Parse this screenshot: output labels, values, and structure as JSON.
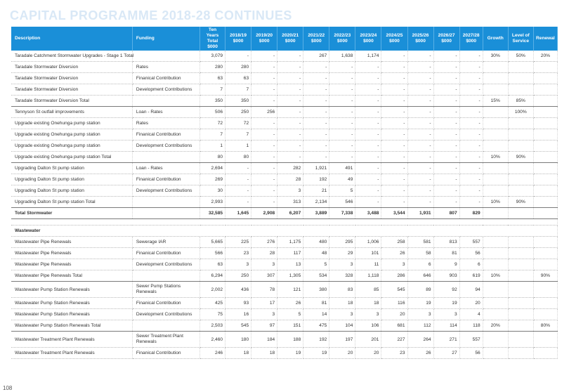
{
  "page": {
    "heading": "CAPITAL PROGRAMME 2018-28 CONTINUES",
    "number": "108"
  },
  "columns": {
    "description": "Description",
    "funding": "Funding",
    "total": "Ten Years Total $000",
    "years": [
      "2018/19 $000",
      "2019/20 $000",
      "2020/21 $000",
      "2021/22 $000",
      "2022/23 $000",
      "2023/24 $000",
      "2024/25 $000",
      "2025/26 $000",
      "2026/27 $000",
      "2027/28 $000"
    ],
    "growth": "Growth",
    "los": "Level of Service",
    "renewal": "Renewal"
  },
  "rows": [
    {
      "k": "item",
      "desc": "Taradale Catchment Stormwater Upgrades - Stage 1 Total",
      "fund": "",
      "total": "3,079",
      "y": [
        "-",
        "-",
        "-",
        "267",
        "1,638",
        "1,174",
        "-",
        "-",
        "-",
        "-"
      ],
      "g": "30%",
      "l": "50%",
      "r": "20%"
    },
    {
      "k": "item",
      "desc": "Taradale Stormwater Diversion",
      "fund": "Rates",
      "total": "280",
      "y": [
        "280",
        "-",
        "-",
        "-",
        "-",
        "-",
        "-",
        "-",
        "-",
        "-"
      ],
      "g": "",
      "l": "",
      "r": ""
    },
    {
      "k": "item",
      "desc": "Taradale Stormwater Diversion",
      "fund": "Finanical Contribution",
      "total": "63",
      "y": [
        "63",
        "-",
        "-",
        "-",
        "-",
        "-",
        "-",
        "-",
        "-",
        "-"
      ],
      "g": "",
      "l": "",
      "r": ""
    },
    {
      "k": "item",
      "desc": "Taradale Stormwater Diversion",
      "fund": "Development Contributions",
      "total": "7",
      "y": [
        "7",
        "-",
        "-",
        "-",
        "-",
        "-",
        "-",
        "-",
        "-",
        "-"
      ],
      "g": "",
      "l": "",
      "r": ""
    },
    {
      "k": "total",
      "desc": "Taradale Stormwater Diversion Total",
      "fund": "",
      "total": "350",
      "y": [
        "350",
        "-",
        "-",
        "-",
        "-",
        "-",
        "-",
        "-",
        "-",
        "-"
      ],
      "g": "15%",
      "l": "85%",
      "r": ""
    },
    {
      "k": "item",
      "desc": "Tennyson St outfall improvements",
      "fund": "Loan - Rates",
      "total": "506",
      "y": [
        "250",
        "256",
        "-",
        "-",
        "-",
        "-",
        "-",
        "-",
        "-",
        "-"
      ],
      "g": "",
      "l": "100%",
      "r": ""
    },
    {
      "k": "item",
      "desc": "Upgrade existing Onehunga pump station",
      "fund": "Rates",
      "total": "72",
      "y": [
        "72",
        "-",
        "-",
        "-",
        "-",
        "-",
        "-",
        "-",
        "-",
        "-"
      ],
      "g": "",
      "l": "",
      "r": ""
    },
    {
      "k": "item",
      "desc": "Upgrade existing Onehunga pump station",
      "fund": "Finanical Contribution",
      "total": "7",
      "y": [
        "7",
        "-",
        "-",
        "-",
        "-",
        "-",
        "-",
        "-",
        "-",
        "-"
      ],
      "g": "",
      "l": "",
      "r": ""
    },
    {
      "k": "item",
      "desc": "Upgrade existing Onehunga pump station",
      "fund": "Development Contributions",
      "total": "1",
      "y": [
        "1",
        "-",
        "-",
        "-",
        "-",
        "-",
        "-",
        "-",
        "-",
        "-"
      ],
      "g": "",
      "l": "",
      "r": ""
    },
    {
      "k": "total",
      "desc": "Upgrade existing Onehunga pump station Total",
      "fund": "",
      "total": "80",
      "y": [
        "80",
        "-",
        "-",
        "-",
        "-",
        "-",
        "-",
        "-",
        "-",
        "-"
      ],
      "g": "10%",
      "l": "90%",
      "r": ""
    },
    {
      "k": "item",
      "desc": "Upgrading Dalton St pump station",
      "fund": "Loan - Rates",
      "total": "2,694",
      "y": [
        "-",
        "-",
        "282",
        "1,921",
        "491",
        "-",
        "-",
        "-",
        "-",
        "-"
      ],
      "g": "",
      "l": "",
      "r": ""
    },
    {
      "k": "item",
      "desc": "Upgrading Dalton St pump station",
      "fund": "Finanical Contribution",
      "total": "269",
      "y": [
        "-",
        "-",
        "28",
        "192",
        "49",
        "-",
        "-",
        "-",
        "-",
        "-"
      ],
      "g": "",
      "l": "",
      "r": ""
    },
    {
      "k": "item",
      "desc": "Upgrading Dalton St pump station",
      "fund": "Development Contributions",
      "total": "30",
      "y": [
        "-",
        "-",
        "3",
        "21",
        "5",
        "-",
        "-",
        "-",
        "-",
        "-"
      ],
      "g": "",
      "l": "",
      "r": ""
    },
    {
      "k": "total",
      "desc": "Upgrading Dalton St pump station Total",
      "fund": "",
      "total": "2,993",
      "y": [
        "-",
        "-",
        "313",
        "2,134",
        "546",
        "-",
        "-",
        "-",
        "-",
        "-"
      ],
      "g": "10%",
      "l": "90%",
      "r": ""
    },
    {
      "k": "grand",
      "desc": "Total Stormwater",
      "fund": "",
      "total": "32,585",
      "y": [
        "1,645",
        "2,908",
        "6,207",
        "3,889",
        "7,338",
        "3,488",
        "3,544",
        "1,931",
        "807",
        "829"
      ],
      "g": "",
      "l": "",
      "r": ""
    },
    {
      "k": "spacer"
    },
    {
      "k": "section",
      "desc": "Wastewater"
    },
    {
      "k": "item",
      "desc": "Wastewater Pipe Renewals",
      "fund": "Sewerage IAR",
      "total": "5,665",
      "y": [
        "225",
        "276",
        "1,175",
        "480",
        "295",
        "1,006",
        "258",
        "581",
        "813",
        "557"
      ],
      "g": "",
      "l": "",
      "r": ""
    },
    {
      "k": "item",
      "desc": "Wastewater Pipe Renewals",
      "fund": "Finanical Contribution",
      "total": "566",
      "y": [
        "23",
        "28",
        "117",
        "48",
        "29",
        "101",
        "26",
        "58",
        "81",
        "56"
      ],
      "g": "",
      "l": "",
      "r": ""
    },
    {
      "k": "item",
      "desc": "Wastewater Pipe Renewals",
      "fund": "Development Contributions",
      "total": "63",
      "y": [
        "3",
        "3",
        "13",
        "5",
        "3",
        "11",
        "3",
        "6",
        "9",
        "6"
      ],
      "g": "",
      "l": "",
      "r": ""
    },
    {
      "k": "total",
      "desc": "Wastewater Pipe Renewals Total",
      "fund": "",
      "total": "6,294",
      "y": [
        "250",
        "307",
        "1,305",
        "534",
        "328",
        "1,118",
        "286",
        "646",
        "903",
        "619"
      ],
      "g": "10%",
      "l": "",
      "r": "90%"
    },
    {
      "k": "tall",
      "desc": "Wastewater Pump Station Renewals",
      "fund": "Sewer Pump Stations Renewals",
      "total": "2,002",
      "y": [
        "436",
        "78",
        "121",
        "380",
        "83",
        "85",
        "545",
        "89",
        "92",
        "94"
      ],
      "g": "",
      "l": "",
      "r": ""
    },
    {
      "k": "item",
      "desc": "Wastewater Pump Station Renewals",
      "fund": "Finanical Contribution",
      "total": "425",
      "y": [
        "93",
        "17",
        "26",
        "81",
        "18",
        "18",
        "116",
        "19",
        "19",
        "20"
      ],
      "g": "",
      "l": "",
      "r": ""
    },
    {
      "k": "item",
      "desc": "Wastewater Pump Station Renewals",
      "fund": "Development Contributions",
      "total": "75",
      "y": [
        "16",
        "3",
        "5",
        "14",
        "3",
        "3",
        "20",
        "3",
        "3",
        "4"
      ],
      "g": "",
      "l": "",
      "r": ""
    },
    {
      "k": "total",
      "desc": "Wastewater Pump Station Renewals Total",
      "fund": "",
      "total": "2,503",
      "y": [
        "545",
        "97",
        "151",
        "475",
        "104",
        "106",
        "681",
        "112",
        "114",
        "118"
      ],
      "g": "20%",
      "l": "",
      "r": "80%"
    },
    {
      "k": "tall",
      "desc": "Wastewater Treatment Plant Renewals",
      "fund": "Sewer Treatment Plant Renewals",
      "total": "2,460",
      "y": [
        "180",
        "184",
        "188",
        "192",
        "197",
        "201",
        "227",
        "264",
        "271",
        "557"
      ],
      "g": "",
      "l": "",
      "r": ""
    },
    {
      "k": "item",
      "desc": "Wastewater Treatment Plant Renewals",
      "fund": "Finanical Contribution",
      "total": "246",
      "y": [
        "18",
        "18",
        "19",
        "19",
        "20",
        "20",
        "23",
        "26",
        "27",
        "56"
      ],
      "g": "",
      "l": "",
      "r": ""
    }
  ]
}
